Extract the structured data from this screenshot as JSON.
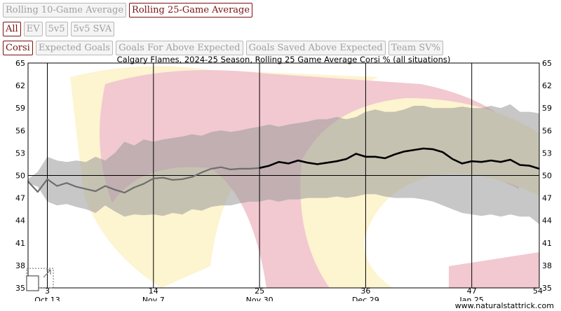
{
  "controls": {
    "window_row": [
      {
        "label": "Rolling 10-Game Average",
        "active": false
      },
      {
        "label": "Rolling 25-Game Average",
        "active": true
      }
    ],
    "situation_row": [
      {
        "label": "All",
        "active": true
      },
      {
        "label": "EV",
        "active": false
      },
      {
        "label": "5v5",
        "active": false
      },
      {
        "label": "5v5 SVA",
        "active": false
      }
    ],
    "metric_row": [
      {
        "label": "Corsi",
        "active": true
      },
      {
        "label": "Expected Goals",
        "active": false
      },
      {
        "label": "Goals For Above Expected",
        "active": false
      },
      {
        "label": "Goals Saved Above Expected",
        "active": false
      },
      {
        "label": "Team SV%",
        "active": false
      }
    ]
  },
  "credit": "www.naturalstattrick.com",
  "colors": {
    "line_dark": "#000000",
    "line_light": "#6e6e6e",
    "band": "#999999",
    "logo_red": "#f0c0c8",
    "logo_yellow": "#fdf3c8",
    "accent": "#7a1010"
  },
  "chart_data": {
    "type": "line",
    "title": "Calgary Flames, 2024-25 Season, Rolling 25 Game Average Corsi % (all situations)",
    "xlim": [
      1,
      54
    ],
    "ylim": [
      35,
      65
    ],
    "y_ticks": [
      35,
      38,
      41,
      44,
      47,
      50,
      53,
      56,
      59,
      62,
      65
    ],
    "x_ticks": [
      {
        "game": 3,
        "date": "Oct 13"
      },
      {
        "game": 14,
        "date": "Nov 7"
      },
      {
        "game": 25,
        "date": "Nov 30"
      },
      {
        "game": 36,
        "date": "Dec 29"
      },
      {
        "game": 47,
        "date": "Jan 25"
      },
      {
        "game": 54,
        "date": ""
      }
    ],
    "reference_line": 50,
    "grid": false,
    "series": [
      {
        "style": "partial-window",
        "games": [
          1,
          2,
          3,
          4,
          5,
          6,
          7,
          8,
          9,
          10,
          11,
          12,
          13,
          14,
          15,
          16,
          17,
          18,
          19,
          20,
          21,
          22,
          23,
          24,
          25
        ],
        "values": [
          49.2,
          47.8,
          49.5,
          48.6,
          49.0,
          48.5,
          48.2,
          47.9,
          48.6,
          48.1,
          47.7,
          48.4,
          48.9,
          49.6,
          49.7,
          49.4,
          49.5,
          49.8,
          50.4,
          50.9,
          51.1,
          50.8,
          50.9,
          50.9,
          51.0
        ]
      },
      {
        "style": "full-window",
        "games": [
          25,
          26,
          27,
          28,
          29,
          30,
          31,
          32,
          33,
          34,
          35,
          36,
          37,
          38,
          39,
          40,
          41,
          42,
          43,
          44,
          45,
          46,
          47,
          48,
          49,
          50,
          51,
          52,
          53,
          54
        ],
        "values": [
          51.0,
          51.3,
          51.8,
          51.6,
          52.0,
          51.7,
          51.5,
          51.7,
          51.9,
          52.2,
          52.9,
          52.5,
          52.5,
          52.3,
          52.8,
          53.2,
          53.4,
          53.6,
          53.5,
          53.1,
          52.2,
          51.6,
          51.9,
          51.8,
          52.0,
          51.8,
          52.1,
          51.4,
          51.3,
          50.9
        ]
      }
    ],
    "band": {
      "games": [
        1,
        2,
        3,
        4,
        5,
        6,
        7,
        8,
        9,
        10,
        11,
        12,
        13,
        14,
        15,
        16,
        17,
        18,
        19,
        20,
        21,
        22,
        23,
        24,
        25,
        26,
        27,
        28,
        29,
        30,
        31,
        32,
        33,
        34,
        35,
        36,
        37,
        38,
        39,
        40,
        41,
        42,
        43,
        44,
        45,
        46,
        47,
        48,
        49,
        50,
        51,
        52,
        53,
        54
      ],
      "upper": [
        49.5,
        50.5,
        52.5,
        52.0,
        51.8,
        52.0,
        51.8,
        52.5,
        52.0,
        53.0,
        54.5,
        54.0,
        54.8,
        54.5,
        54.8,
        55.0,
        55.2,
        55.5,
        55.3,
        55.8,
        56.0,
        55.8,
        56.0,
        56.3,
        56.5,
        56.8,
        56.5,
        56.8,
        57.0,
        57.2,
        57.5,
        57.5,
        57.8,
        57.5,
        57.8,
        58.5,
        58.8,
        58.5,
        58.5,
        58.8,
        59.3,
        59.3,
        59.0,
        59.0,
        59.0,
        59.2,
        59.0,
        59.0,
        59.3,
        59.0,
        59.5,
        58.5,
        58.5,
        58.3
      ],
      "lower": [
        49.0,
        48.5,
        46.5,
        46.0,
        46.2,
        45.8,
        45.5,
        45.0,
        46.0,
        45.2,
        44.5,
        44.8,
        44.7,
        44.8,
        44.6,
        45.0,
        44.8,
        45.5,
        45.3,
        45.8,
        46.0,
        46.0,
        46.3,
        46.5,
        46.5,
        46.8,
        46.5,
        46.8,
        46.8,
        47.0,
        47.0,
        47.0,
        47.2,
        47.0,
        47.2,
        47.5,
        47.5,
        47.2,
        47.0,
        47.0,
        47.0,
        46.8,
        46.5,
        46.0,
        45.5,
        45.0,
        44.8,
        44.6,
        44.8,
        44.5,
        44.8,
        44.5,
        44.5,
        43.5
      ]
    }
  }
}
